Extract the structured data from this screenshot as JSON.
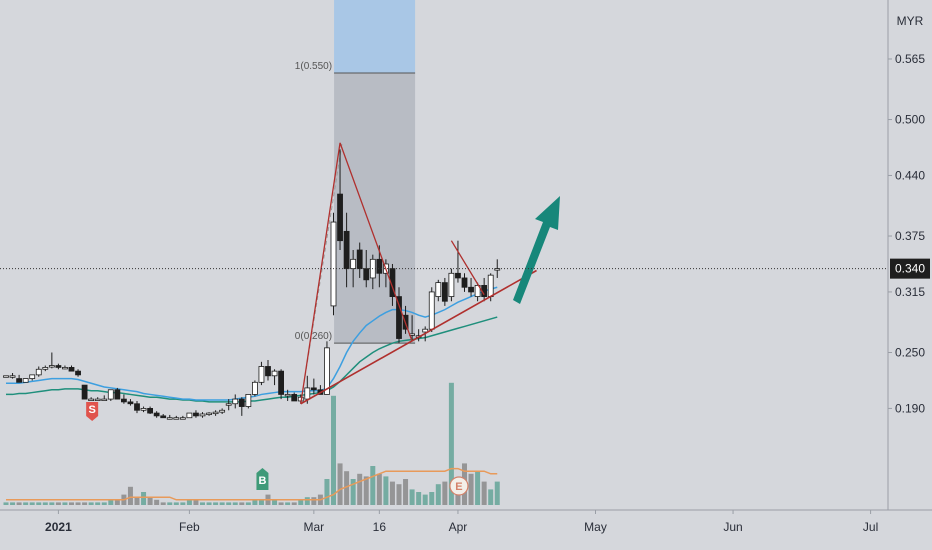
{
  "colors": {
    "background": "#d5d7dc",
    "up_candle": "#ffffff",
    "down_candle": "#1e1e1e",
    "ma_fast": "#3d9fe0",
    "ma_slow": "#1f8f7c",
    "trend_line": "#b0302e",
    "arrow": "#17877a",
    "volume_up": "#6aa79b",
    "volume_down": "#8e8e8e",
    "volume_ma": "#e89a5a",
    "fib_zone": "#b3b7bf",
    "target_zone": "#a9c7e6",
    "sell_marker": "#e0534c",
    "buy_marker": "#3e9a78"
  },
  "chart_data": {
    "type": "candlestick",
    "currency_label": "MYR",
    "current_price": "0.340",
    "y_ticks": [
      "0.565",
      "0.500",
      "0.440",
      "0.375",
      "0.315",
      "0.250",
      "0.190"
    ],
    "ylim": [
      0.14,
      0.58
    ],
    "x_ticks": [
      {
        "label": "2021",
        "index": 8
      },
      {
        "label": "Feb",
        "index": 28
      },
      {
        "label": "Mar",
        "index": 47
      },
      {
        "label": "16",
        "index": 57
      },
      {
        "label": "Apr",
        "index": 69
      },
      {
        "label": "May",
        "index": 90
      },
      {
        "label": "Jun",
        "index": 111
      },
      {
        "label": "Jul",
        "index": 132
      }
    ],
    "fib_levels": [
      {
        "label": "1(0.550)",
        "price": 0.55
      },
      {
        "label": "0(0.260)",
        "price": 0.26
      }
    ],
    "candles": [
      [
        0.225,
        0.225,
        0.225,
        0.225
      ],
      [
        0.225,
        0.228,
        0.222,
        0.225
      ],
      [
        0.222,
        0.226,
        0.218,
        0.218
      ],
      [
        0.218,
        0.222,
        0.218,
        0.222
      ],
      [
        0.222,
        0.226,
        0.22,
        0.226
      ],
      [
        0.226,
        0.235,
        0.224,
        0.232
      ],
      [
        0.232,
        0.236,
        0.23,
        0.234
      ],
      [
        0.235,
        0.25,
        0.233,
        0.236
      ],
      [
        0.236,
        0.238,
        0.232,
        0.234
      ],
      [
        0.234,
        0.236,
        0.232,
        0.234
      ],
      [
        0.234,
        0.236,
        0.23,
        0.23
      ],
      [
        0.23,
        0.232,
        0.224,
        0.226
      ],
      [
        0.215,
        0.215,
        0.2,
        0.2
      ],
      [
        0.2,
        0.202,
        0.2,
        0.2
      ],
      [
        0.2,
        0.202,
        0.2,
        0.2
      ],
      [
        0.2,
        0.204,
        0.2,
        0.2
      ],
      [
        0.2,
        0.21,
        0.198,
        0.21
      ],
      [
        0.21,
        0.212,
        0.2,
        0.2
      ],
      [
        0.2,
        0.205,
        0.195,
        0.197
      ],
      [
        0.197,
        0.2,
        0.193,
        0.195
      ],
      [
        0.195,
        0.198,
        0.185,
        0.188
      ],
      [
        0.188,
        0.192,
        0.186,
        0.19
      ],
      [
        0.19,
        0.192,
        0.184,
        0.185
      ],
      [
        0.185,
        0.187,
        0.18,
        0.182
      ],
      [
        0.182,
        0.184,
        0.18,
        0.18
      ],
      [
        0.18,
        0.183,
        0.178,
        0.18
      ],
      [
        0.18,
        0.182,
        0.18,
        0.18
      ],
      [
        0.18,
        0.182,
        0.18,
        0.18
      ],
      [
        0.18,
        0.185,
        0.18,
        0.185
      ],
      [
        0.185,
        0.188,
        0.18,
        0.182
      ],
      [
        0.182,
        0.186,
        0.18,
        0.184
      ],
      [
        0.184,
        0.186,
        0.182,
        0.185
      ],
      [
        0.185,
        0.188,
        0.182,
        0.186
      ],
      [
        0.186,
        0.19,
        0.184,
        0.188
      ],
      [
        0.195,
        0.2,
        0.188,
        0.195
      ],
      [
        0.195,
        0.205,
        0.19,
        0.2
      ],
      [
        0.2,
        0.202,
        0.182,
        0.192
      ],
      [
        0.192,
        0.205,
        0.19,
        0.205
      ],
      [
        0.205,
        0.22,
        0.203,
        0.218
      ],
      [
        0.218,
        0.24,
        0.215,
        0.235
      ],
      [
        0.235,
        0.242,
        0.22,
        0.225
      ],
      [
        0.225,
        0.232,
        0.215,
        0.23
      ],
      [
        0.23,
        0.232,
        0.2,
        0.205
      ],
      [
        0.205,
        0.21,
        0.198,
        0.205
      ],
      [
        0.205,
        0.207,
        0.198,
        0.198
      ],
      [
        0.198,
        0.205,
        0.195,
        0.202
      ],
      [
        0.2,
        0.225,
        0.195,
        0.212
      ],
      [
        0.212,
        0.222,
        0.205,
        0.21
      ],
      [
        0.21,
        0.215,
        0.205,
        0.205
      ],
      [
        0.205,
        0.262,
        0.205,
        0.255
      ],
      [
        0.3,
        0.4,
        0.29,
        0.39
      ],
      [
        0.42,
        0.468,
        0.36,
        0.37
      ],
      [
        0.38,
        0.4,
        0.32,
        0.34
      ],
      [
        0.34,
        0.36,
        0.32,
        0.35
      ],
      [
        0.36,
        0.368,
        0.33,
        0.34
      ],
      [
        0.34,
        0.36,
        0.32,
        0.328
      ],
      [
        0.33,
        0.355,
        0.318,
        0.35
      ],
      [
        0.35,
        0.365,
        0.32,
        0.335
      ],
      [
        0.335,
        0.35,
        0.32,
        0.345
      ],
      [
        0.34,
        0.345,
        0.3,
        0.31
      ],
      [
        0.31,
        0.32,
        0.26,
        0.265
      ],
      [
        0.29,
        0.3,
        0.27,
        0.275
      ],
      [
        0.27,
        0.29,
        0.262,
        0.27
      ],
      [
        0.268,
        0.275,
        0.262,
        0.268
      ],
      [
        0.272,
        0.278,
        0.262,
        0.275
      ],
      [
        0.275,
        0.32,
        0.272,
        0.315
      ],
      [
        0.31,
        0.328,
        0.305,
        0.325
      ],
      [
        0.325,
        0.33,
        0.3,
        0.305
      ],
      [
        0.31,
        0.34,
        0.305,
        0.335
      ],
      [
        0.335,
        0.37,
        0.325,
        0.33
      ],
      [
        0.33,
        0.335,
        0.315,
        0.32
      ],
      [
        0.32,
        0.33,
        0.31,
        0.315
      ],
      [
        0.31,
        0.325,
        0.305,
        0.322
      ],
      [
        0.322,
        0.33,
        0.305,
        0.31
      ],
      [
        0.31,
        0.335,
        0.305,
        0.333
      ],
      [
        0.34,
        0.35,
        0.33,
        0.34
      ]
    ],
    "ma_fast": [
      0.217,
      0.217,
      0.217,
      0.218,
      0.219,
      0.22,
      0.221,
      0.222,
      0.222,
      0.222,
      0.222,
      0.221,
      0.219,
      0.217,
      0.215,
      0.213,
      0.212,
      0.211,
      0.21,
      0.209,
      0.208,
      0.206,
      0.205,
      0.204,
      0.203,
      0.202,
      0.201,
      0.2,
      0.2,
      0.199,
      0.199,
      0.199,
      0.199,
      0.199,
      0.199,
      0.2,
      0.201,
      0.202,
      0.203,
      0.205,
      0.206,
      0.207,
      0.208,
      0.208,
      0.208,
      0.208,
      0.209,
      0.209,
      0.209,
      0.212,
      0.222,
      0.235,
      0.25,
      0.262,
      0.271,
      0.279,
      0.284,
      0.289,
      0.293,
      0.296,
      0.296,
      0.295,
      0.293,
      0.29,
      0.288,
      0.29,
      0.293,
      0.296,
      0.3,
      0.304,
      0.307,
      0.31,
      0.313,
      0.316,
      0.318,
      0.32
    ],
    "ma_slow": [
      0.205,
      0.205,
      0.206,
      0.206,
      0.207,
      0.208,
      0.209,
      0.21,
      0.21,
      0.211,
      0.211,
      0.211,
      0.21,
      0.209,
      0.209,
      0.208,
      0.207,
      0.207,
      0.206,
      0.205,
      0.204,
      0.203,
      0.202,
      0.202,
      0.201,
      0.2,
      0.2,
      0.199,
      0.199,
      0.198,
      0.198,
      0.197,
      0.197,
      0.197,
      0.197,
      0.197,
      0.197,
      0.198,
      0.198,
      0.199,
      0.2,
      0.201,
      0.202,
      0.202,
      0.203,
      0.204,
      0.205,
      0.206,
      0.207,
      0.209,
      0.213,
      0.219,
      0.226,
      0.233,
      0.24,
      0.245,
      0.25,
      0.254,
      0.257,
      0.26,
      0.262,
      0.263,
      0.264,
      0.265,
      0.266,
      0.268,
      0.27,
      0.272,
      0.274,
      0.276,
      0.278,
      0.28,
      0.282,
      0.284,
      0.286,
      0.288
    ],
    "volume": [
      1,
      1,
      1,
      1,
      1,
      1,
      1,
      1,
      1,
      1,
      1,
      1,
      1,
      1,
      1,
      1,
      2,
      2,
      4,
      7,
      3,
      5,
      3,
      2,
      1,
      1,
      1,
      1,
      2,
      2,
      1,
      1,
      1,
      1,
      1,
      1,
      1,
      1,
      2,
      2,
      4,
      2,
      1,
      1,
      1,
      2,
      3,
      3,
      4,
      10,
      42,
      16,
      13,
      10,
      12,
      11,
      15,
      12,
      11,
      9,
      8,
      10,
      6,
      5,
      4,
      5,
      8,
      9,
      47,
      9,
      16,
      12,
      13,
      9,
      6,
      9
    ],
    "volume_ma": [
      2,
      2,
      2,
      2,
      2,
      2,
      2,
      2,
      2,
      2,
      2,
      2,
      2,
      2,
      2,
      2,
      2,
      2,
      2,
      3,
      3,
      3,
      3,
      3,
      3,
      3,
      2,
      2,
      2,
      2,
      2,
      2,
      2,
      2,
      2,
      2,
      2,
      2,
      2,
      2,
      2,
      2,
      2,
      2,
      2,
      2,
      2,
      2,
      2,
      3,
      4,
      6,
      7,
      8,
      9,
      10,
      11,
      12,
      13,
      13,
      13,
      13,
      13,
      13,
      13,
      13,
      13,
      13,
      14,
      14,
      13,
      13,
      13,
      13,
      12,
      12
    ],
    "signals": [
      {
        "label": "S",
        "index": 13
      },
      {
        "label": "B",
        "index": 39
      },
      {
        "label": "E",
        "index": 69
      }
    ]
  }
}
